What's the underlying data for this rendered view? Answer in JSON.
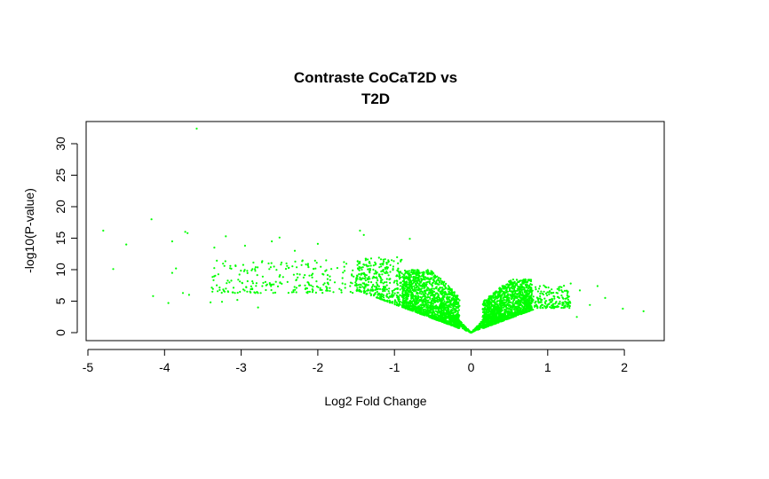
{
  "chart_data": {
    "type": "scatter",
    "title_lines": [
      "Contraste CoCaT2D vs",
      "T2D"
    ],
    "xlabel": "Log2 Fold Change",
    "ylabel": "-log10(P-value)",
    "xlim": [
      -5,
      2.3
    ],
    "ylim": [
      -1,
      33
    ],
    "x_ticks": [
      -5,
      -4,
      -3,
      -2,
      -1,
      0,
      1,
      2
    ],
    "y_ticks": [
      0,
      5,
      10,
      15,
      20,
      25,
      30
    ],
    "point_color": "#00ff00",
    "grid": false,
    "legend": "none",
    "outliers": [
      {
        "x": -3.58,
        "y": 32.4
      },
      {
        "x": -4.17,
        "y": 18.0
      },
      {
        "x": -4.8,
        "y": 16.2
      },
      {
        "x": -3.73,
        "y": 16.0
      },
      {
        "x": -3.7,
        "y": 15.8
      },
      {
        "x": -1.45,
        "y": 16.2
      },
      {
        "x": -1.4,
        "y": 15.5
      },
      {
        "x": -3.2,
        "y": 15.3
      },
      {
        "x": -2.5,
        "y": 15.1
      },
      {
        "x": -2.6,
        "y": 14.5
      },
      {
        "x": -0.8,
        "y": 14.9
      },
      {
        "x": -4.5,
        "y": 14.0
      },
      {
        "x": -3.9,
        "y": 14.5
      },
      {
        "x": -4.67,
        "y": 10.1
      },
      {
        "x": -3.85,
        "y": 10.2
      },
      {
        "x": -3.9,
        "y": 9.5
      },
      {
        "x": -3.35,
        "y": 13.5
      },
      {
        "x": -2.95,
        "y": 13.8
      },
      {
        "x": -2.3,
        "y": 13.0
      },
      {
        "x": -2.0,
        "y": 14.1
      },
      {
        "x": -4.15,
        "y": 5.8
      },
      {
        "x": -3.95,
        "y": 4.7
      },
      {
        "x": -3.76,
        "y": 6.3
      },
      {
        "x": -3.68,
        "y": 6.0
      },
      {
        "x": -3.4,
        "y": 4.8
      },
      {
        "x": -3.25,
        "y": 4.9
      },
      {
        "x": -3.05,
        "y": 5.2
      },
      {
        "x": -2.78,
        "y": 4.0
      },
      {
        "x": 1.98,
        "y": 3.8
      },
      {
        "x": 2.25,
        "y": 3.4
      },
      {
        "x": 1.75,
        "y": 5.5
      },
      {
        "x": 1.65,
        "y": 7.4
      },
      {
        "x": 1.42,
        "y": 6.7
      },
      {
        "x": 1.3,
        "y": 7.8
      },
      {
        "x": 1.55,
        "y": 4.4
      },
      {
        "x": 1.38,
        "y": 2.5
      },
      {
        "x": 1.05,
        "y": 4.3
      }
    ],
    "bulk_regions": [
      {
        "x_range": [
          -3.4,
          -1.5
        ],
        "y_range": [
          2.5,
          11.5
        ],
        "count": 230
      },
      {
        "x_range": [
          -1.5,
          -0.9
        ],
        "y_range": [
          1.5,
          12
        ],
        "count": 380
      },
      {
        "x_range": [
          -0.9,
          -0.15
        ],
        "y_range": [
          0.5,
          10
        ],
        "count": 1500
      },
      {
        "x_range": [
          0.15,
          0.8
        ],
        "y_range": [
          0.5,
          8.5
        ],
        "count": 1400
      },
      {
        "x_range": [
          0.8,
          1.3
        ],
        "y_range": [
          1.5,
          7.5
        ],
        "count": 180
      }
    ]
  }
}
